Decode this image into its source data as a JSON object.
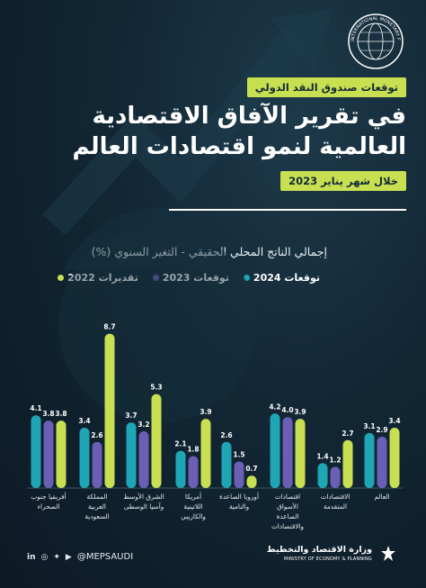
{
  "header": {
    "badge": "توقعات صندوق النقد الدولي",
    "title": "في تقرير الآفاق الاقتصادية العالمية لنمو اقتصادات العالم",
    "date_badge": "خلال شهر يناير 2023",
    "logo_text": "INTERNATIONAL MONETARY FUND"
  },
  "colors": {
    "s2022": "#c8df52",
    "s2023": "#6b5fb5",
    "s2024": "#1ea6b5",
    "background": "#122634"
  },
  "chart_data": {
    "type": "bar",
    "title": "إجمالي الناتج المحلي الحقيقي - التغير السنوي (%)",
    "categories": [
      "العالم",
      "الاقتصادات المتقدمة",
      "اقتصادات الأسواق الصاعدة والاقتصادات النامية",
      "أوروبا الصاعدة والنامية",
      "أمريكا اللاتينية والكاريبي",
      "الشرق الأوسط وآسيا الوسطى",
      "المملكة العربية السعودية",
      "أفريقيا جنوب الصحراء"
    ],
    "series": [
      {
        "name": "تقديرات 2022",
        "values": [
          3.4,
          2.7,
          3.9,
          0.7,
          3.9,
          5.3,
          8.7,
          3.8
        ]
      },
      {
        "name": "توقعات 2023",
        "values": [
          2.9,
          1.2,
          4.0,
          1.5,
          1.8,
          3.2,
          2.6,
          3.8
        ]
      },
      {
        "name": "توقعات 2024",
        "values": [
          3.1,
          1.4,
          4.2,
          2.6,
          2.1,
          3.7,
          3.4,
          4.1
        ]
      }
    ],
    "ylim": [
      0,
      9
    ]
  },
  "footer": {
    "handle": "@MEPSAUDI",
    "ministry_ar": "وزارة الاقتصاد والتخطيط",
    "ministry_en": "MINISTRY OF ECONOMY & PLANNING"
  }
}
